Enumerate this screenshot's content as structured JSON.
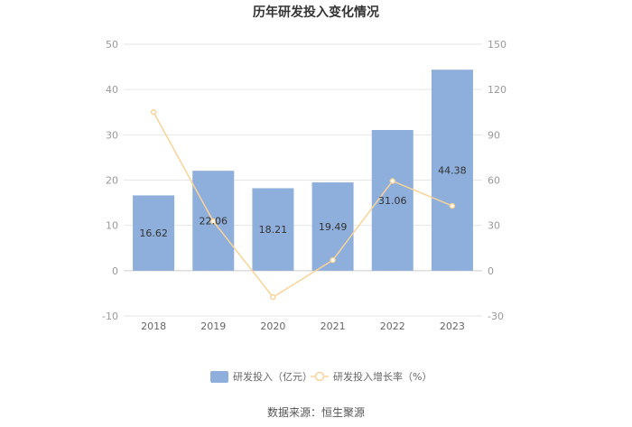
{
  "chart_data": {
    "type": "bar",
    "title": "历年研发投入变化情况",
    "categories": [
      "2018",
      "2019",
      "2020",
      "2021",
      "2022",
      "2023"
    ],
    "series": [
      {
        "name": "研发投入（亿元）",
        "type": "bar",
        "axis": "left",
        "values": [
          16.62,
          22.06,
          18.21,
          19.49,
          31.06,
          44.38
        ],
        "labels": [
          "16.62",
          "22.06",
          "18.21",
          "19.49",
          "31.06",
          "44.38"
        ],
        "color": "#8eaedb"
      },
      {
        "name": "研发投入增长率（%）",
        "type": "line",
        "axis": "right",
        "values": [
          105.0,
          32.7,
          -17.5,
          7.0,
          59.4,
          42.9
        ],
        "color": "#f8d39a"
      }
    ],
    "y_left": {
      "min": -10,
      "max": 50,
      "ticks": [
        "-10",
        "0",
        "10",
        "20",
        "30",
        "40",
        "50"
      ]
    },
    "y_right": {
      "min": -30,
      "max": 150,
      "ticks": [
        "-30",
        "0",
        "30",
        "60",
        "90",
        "120",
        "150"
      ]
    },
    "grid": true,
    "legend_position": "bottom"
  },
  "source_text": "数据来源：恒生聚源"
}
